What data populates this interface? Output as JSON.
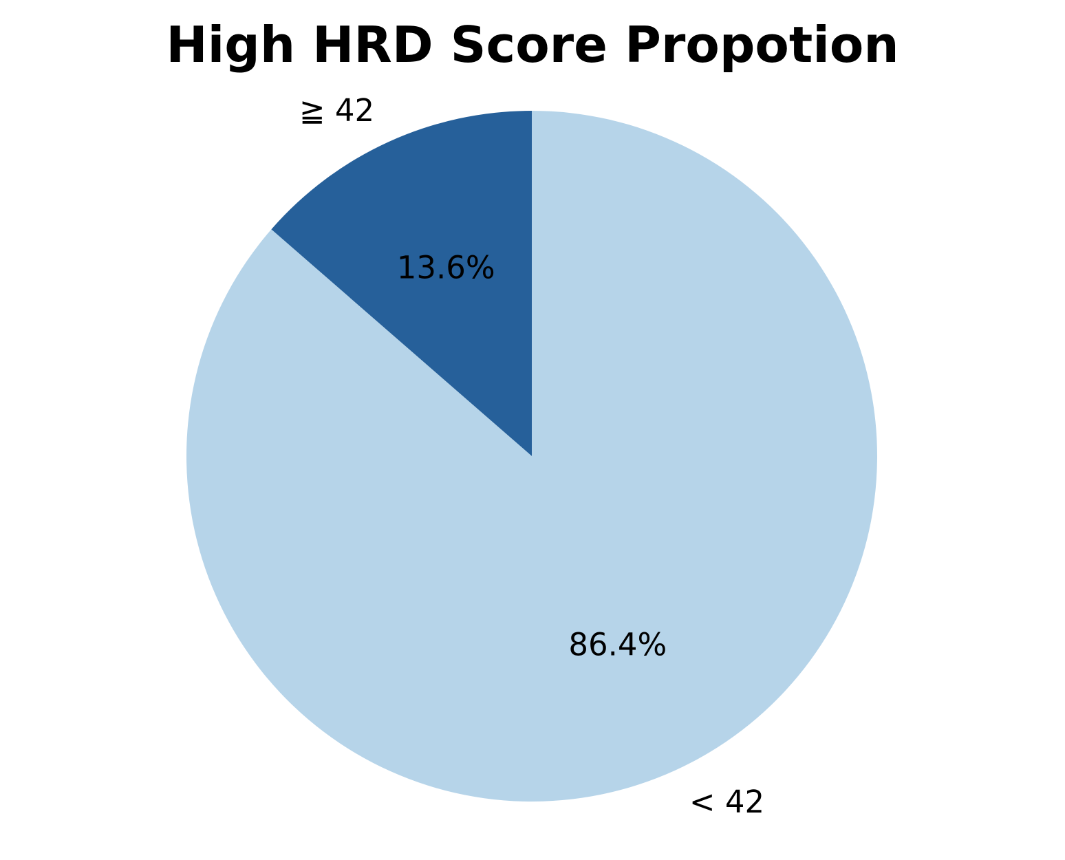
{
  "chart_data": {
    "type": "pie",
    "title": "High HRD Score Propotion",
    "slices": [
      {
        "label": "≧ 42",
        "value": 13.6,
        "pct_label": "13.6%",
        "color": "#26609a"
      },
      {
        "label": "< 42",
        "value": 86.4,
        "pct_label": "86.4%",
        "color": "#b6d4e9"
      }
    ],
    "start_angle_deg": 90,
    "direction": "counterclockwise"
  }
}
